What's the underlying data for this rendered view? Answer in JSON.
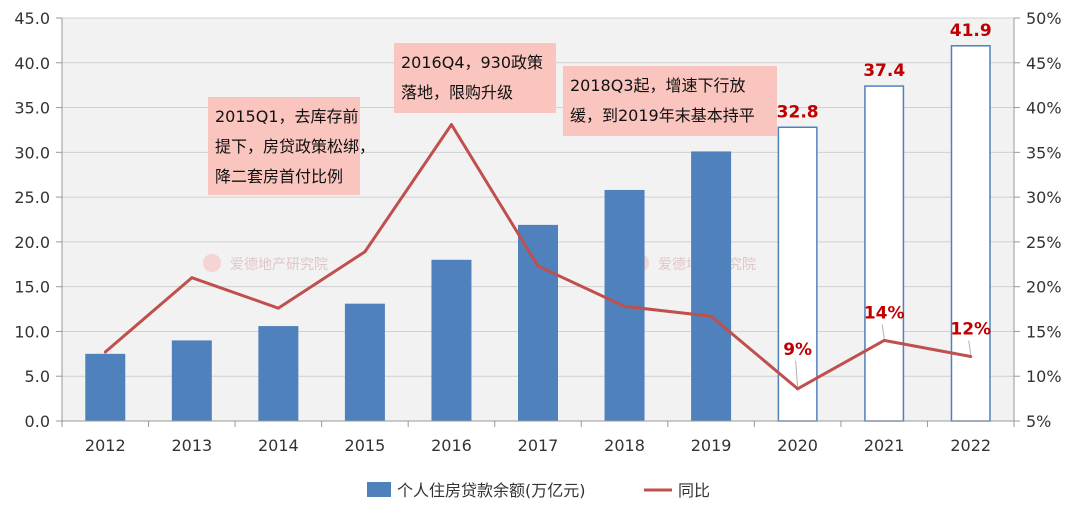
{
  "chart_data": {
    "type": "bar",
    "categories": [
      "2012",
      "2013",
      "2014",
      "2015",
      "2016",
      "2017",
      "2018",
      "2019",
      "2020",
      "2021",
      "2022"
    ],
    "series": [
      {
        "name": "个人住房贷款余额(万亿元)",
        "type": "bar",
        "axis": "left",
        "color": "#4f81bd",
        "values": [
          7.5,
          9.0,
          10.6,
          13.1,
          18.0,
          21.9,
          25.8,
          30.1,
          32.8,
          37.4,
          41.9
        ],
        "hollow_from_index": 8
      },
      {
        "name": "同比",
        "type": "line",
        "axis": "right",
        "color": "#c0504d",
        "values": [
          12.7,
          21.0,
          17.6,
          23.9,
          38.1,
          22.3,
          17.8,
          16.7,
          8.6,
          14.0,
          12.2
        ]
      }
    ],
    "y_left": {
      "min": 0,
      "max": 45,
      "step": 5,
      "tick_labels": [
        "0.0",
        "5.0",
        "10.0",
        "15.0",
        "20.0",
        "25.0",
        "30.0",
        "35.0",
        "40.0",
        "45.0"
      ]
    },
    "y_right": {
      "min": 5,
      "max": 50,
      "step": 5,
      "tick_labels": [
        "5%",
        "10%",
        "15%",
        "20%",
        "25%",
        "30%",
        "35%",
        "40%",
        "45%",
        "50%"
      ]
    },
    "grid": true,
    "legend": "bottom-center",
    "bar_labels": [
      {
        "index": 8,
        "text": "32.8"
      },
      {
        "index": 9,
        "text": "37.4"
      },
      {
        "index": 10,
        "text": "41.9"
      }
    ],
    "line_labels": [
      {
        "index": 8,
        "text": "9%"
      },
      {
        "index": 9,
        "text": "14%"
      },
      {
        "index": 10,
        "text": "12%"
      }
    ],
    "annotations": [
      {
        "lines": [
          "2015Q1，去库存前",
          "提下，房贷政策松绑，",
          "降二套房首付比例"
        ]
      },
      {
        "lines": [
          "2016Q4，930政策",
          "落地，限购升级"
        ]
      },
      {
        "lines": [
          "2018Q3起，增速下行放",
          "缓，到2019年末基本持平"
        ]
      }
    ],
    "watermarks": [
      "爱德地产研究院",
      "爱德地产研究院"
    ]
  }
}
